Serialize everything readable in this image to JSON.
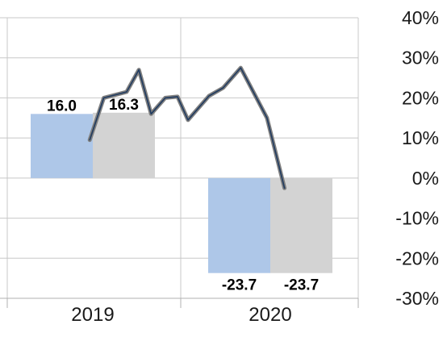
{
  "chart_data": {
    "type": "bar",
    "categories": [
      "2019",
      "2020"
    ],
    "series": [
      {
        "values": [
          16.0,
          -23.7
        ],
        "labels": [
          "16.0",
          "-23.7"
        ],
        "color": "#aec7e8"
      },
      {
        "values": [
          16.3,
          -23.7
        ],
        "labels": [
          "16.3",
          "-23.7"
        ],
        "color": "#d3d3d3"
      }
    ],
    "line_series": {
      "color_outer": "#7f7f7f",
      "color_inner": "#1f3a5f",
      "points": [
        {
          "x": 2018.97,
          "y": 9.5
        },
        {
          "x": 2019.05,
          "y": 20.0
        },
        {
          "x": 2019.18,
          "y": 21.5
        },
        {
          "x": 2019.25,
          "y": 27.0
        },
        {
          "x": 2019.32,
          "y": 16.0
        },
        {
          "x": 2019.4,
          "y": 20.0
        },
        {
          "x": 2019.47,
          "y": 20.3
        },
        {
          "x": 2019.53,
          "y": 14.5
        },
        {
          "x": 2019.65,
          "y": 20.5
        },
        {
          "x": 2019.73,
          "y": 22.5
        },
        {
          "x": 2019.83,
          "y": 27.5
        },
        {
          "x": 2019.98,
          "y": 15.0
        },
        {
          "x": 2020.08,
          "y": -2.5
        }
      ]
    },
    "ylim": [
      -30,
      40
    ],
    "y_ticks": [
      "40%",
      "30%",
      "20%",
      "10%",
      "0%",
      "-10%",
      "-20%",
      "-30%"
    ],
    "y_tick_values": [
      40,
      30,
      20,
      10,
      0,
      -10,
      -20,
      -30
    ],
    "grid": true,
    "legend": "none"
  }
}
